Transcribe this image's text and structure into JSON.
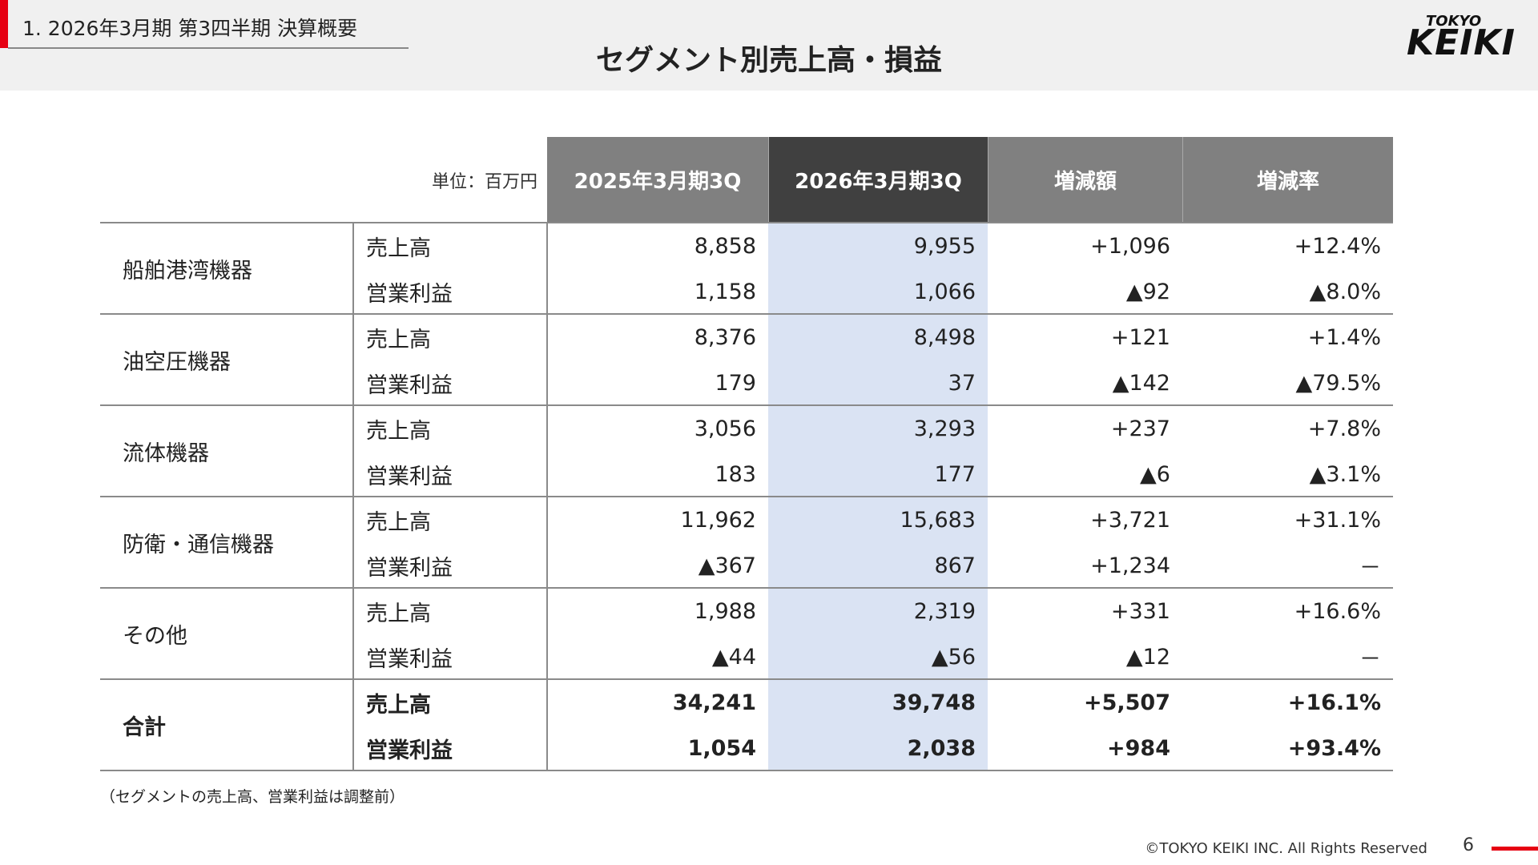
{
  "header": {
    "section": "1. 2026年3月期 第3四半期 決算概要",
    "title": "セグメント別売上高・損益",
    "logo_small": "TOKYO",
    "logo_large": "KEIKI"
  },
  "table": {
    "unit": "単位：百万円",
    "columns": [
      "2025年3月期3Q",
      "2026年3月期3Q",
      "増減額",
      "増減率"
    ],
    "groups": [
      {
        "segment": "船舶港湾機器",
        "rows": [
          {
            "item": "売上高",
            "cells": [
              "8,858",
              "9,955",
              "+1,096",
              "+12.4%"
            ]
          },
          {
            "item": "営業利益",
            "cells": [
              "1,158",
              "1,066",
              "▲92",
              "▲8.0%"
            ]
          }
        ]
      },
      {
        "segment": "油空圧機器",
        "rows": [
          {
            "item": "売上高",
            "cells": [
              "8,376",
              "8,498",
              "+121",
              "+1.4%"
            ]
          },
          {
            "item": "営業利益",
            "cells": [
              "179",
              "37",
              "▲142",
              "▲79.5%"
            ]
          }
        ]
      },
      {
        "segment": "流体機器",
        "rows": [
          {
            "item": "売上高",
            "cells": [
              "3,056",
              "3,293",
              "+237",
              "+7.8%"
            ]
          },
          {
            "item": "営業利益",
            "cells": [
              "183",
              "177",
              "▲6",
              "▲3.1%"
            ]
          }
        ]
      },
      {
        "segment": "防衛・通信機器",
        "rows": [
          {
            "item": "売上高",
            "cells": [
              "11,962",
              "15,683",
              "+3,721",
              "+31.1%"
            ]
          },
          {
            "item": "営業利益",
            "cells": [
              "▲367",
              "867",
              "+1,234",
              "－"
            ]
          }
        ]
      },
      {
        "segment": "その他",
        "rows": [
          {
            "item": "売上高",
            "cells": [
              "1,988",
              "2,319",
              "+331",
              "+16.6%"
            ]
          },
          {
            "item": "営業利益",
            "cells": [
              "▲44",
              "▲56",
              "▲12",
              "－"
            ]
          }
        ]
      },
      {
        "segment": "合計",
        "rows": [
          {
            "item": "売上高",
            "cells": [
              "34,241",
              "39,748",
              "+5,507",
              "+16.1%"
            ]
          },
          {
            "item": "営業利益",
            "cells": [
              "1,054",
              "2,038",
              "+984",
              "+93.4%"
            ]
          }
        ]
      }
    ],
    "note": "（セグメントの売上高、営業利益は調整前）"
  },
  "footer": {
    "copyright": "©TOKYO KEIKI INC. All Rights Reserved",
    "page": "6"
  }
}
